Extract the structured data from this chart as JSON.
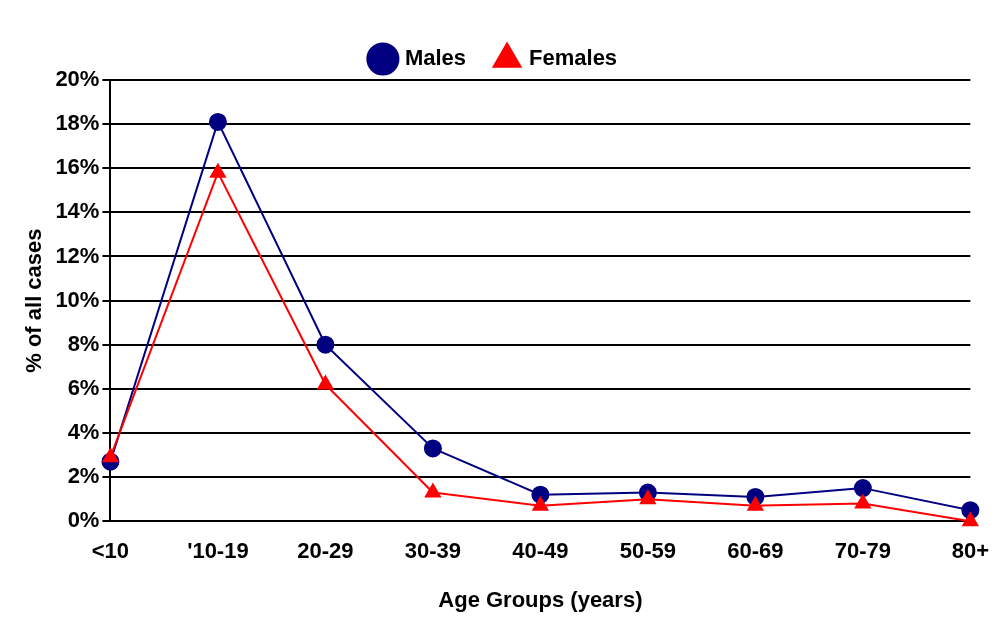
{
  "chart_data": {
    "type": "line",
    "xlabel": "Age Groups (years)",
    "ylabel": "% of all cases",
    "categories": [
      "<10",
      "'10-19",
      "20-29",
      "30-39",
      "40-49",
      "50-59",
      "60-69",
      "70-79",
      "80+"
    ],
    "series": [
      {
        "name": "Males",
        "color": "#000080",
        "marker": "circle",
        "values": [
          2.7,
          18.1,
          8.0,
          3.3,
          1.2,
          1.3,
          1.1,
          1.5,
          0.5
        ]
      },
      {
        "name": "Females",
        "color": "#ff0000",
        "marker": "triangle",
        "values": [
          2.9,
          15.8,
          6.2,
          1.3,
          0.7,
          1.0,
          0.7,
          0.8,
          0
        ]
      }
    ],
    "ylim": [
      0,
      20
    ],
    "yticks": [
      {
        "value": 0,
        "label": "0%"
      },
      {
        "value": 2,
        "label": "2%"
      },
      {
        "value": 4,
        "label": "4%"
      },
      {
        "value": 6,
        "label": "6%"
      },
      {
        "value": 8,
        "label": "8%"
      },
      {
        "value": 10,
        "label": "10%"
      },
      {
        "value": 12,
        "label": "12%"
      },
      {
        "value": 14,
        "label": "14%"
      },
      {
        "value": 16,
        "label": "16%"
      },
      {
        "value": 18,
        "label": "18%"
      },
      {
        "value": 20,
        "label": "20%"
      }
    ],
    "grid": "y",
    "legend": "top"
  }
}
